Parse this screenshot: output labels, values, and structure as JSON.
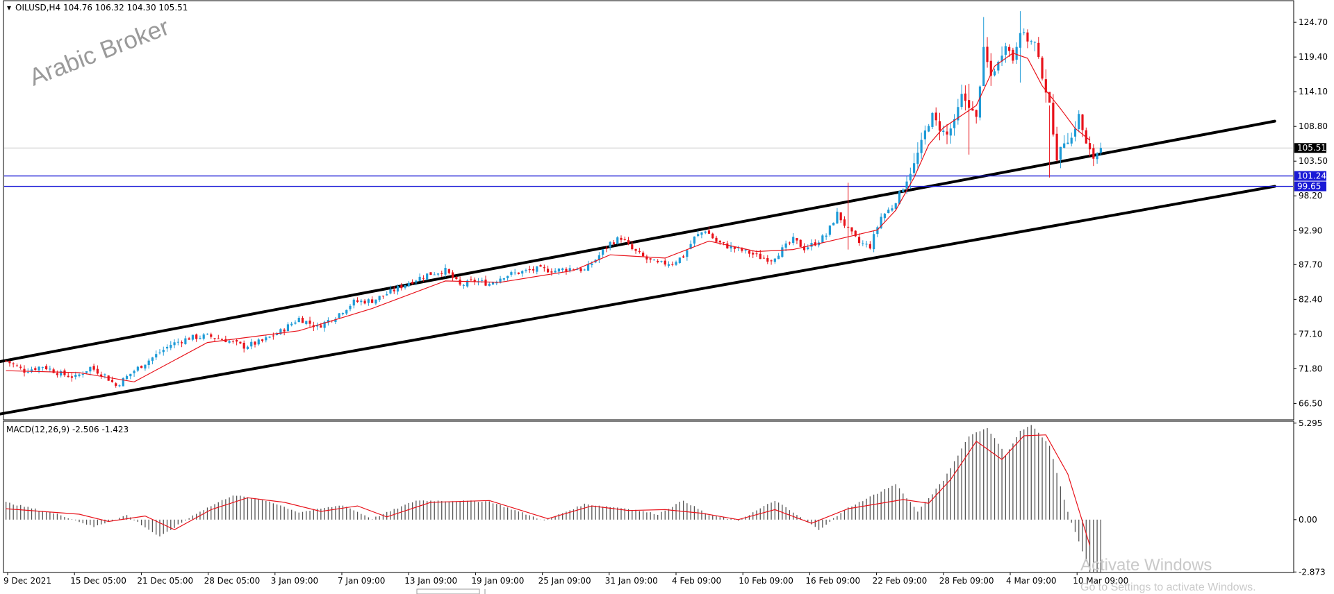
{
  "header": {
    "symbol_info": "OILUSD,H4  104.76 106.32 104.30 105.51",
    "macd_info": "MACD(12,26,9) -2.506 -1.423"
  },
  "watermark": "Arabic Broker",
  "os_overlay": {
    "activate_title": "Activate Windows",
    "activate_sub": "Go to Settings to activate Windows."
  },
  "colors": {
    "bull_candle": "#1e9bd7",
    "bear_candle": "#e8121a",
    "moving_average": "#e8121a",
    "channel": "#000000",
    "support_lines": "#1a1ad6",
    "current_price_line": "#c8c8c8",
    "badge_blue": "#1a1ad6",
    "badge_black": "#000000",
    "histogram": "#555555",
    "signal_line": "#e8121a"
  },
  "chart_data": [
    {
      "type": "candlestick",
      "symbol": "OILUSD",
      "timeframe": "H4",
      "last_bar": {
        "open": 104.76,
        "high": 106.32,
        "low": 104.3,
        "close": 105.51
      },
      "ylim": [
        64.0,
        128.0
      ],
      "y_ticks": [
        "124.70",
        "119.40",
        "114.10",
        "108.80",
        "103.50",
        "98.20",
        "92.90",
        "87.70",
        "82.40",
        "77.10",
        "71.80",
        "66.50"
      ],
      "x_ticks": [
        "9 Dec 2021",
        "15 Dec 05:00",
        "21 Dec 05:00",
        "28 Dec 05:00",
        "3 Jan 09:00",
        "7 Jan 09:00",
        "13 Jan 09:00",
        "19 Jan 09:00",
        "25 Jan 09:00",
        "31 Jan 09:00",
        "4 Feb 09:00",
        "10 Feb 09:00",
        "16 Feb 09:00",
        "22 Feb 09:00",
        "28 Feb 09:00",
        "4 Mar 09:00",
        "10 Mar 09:00"
      ],
      "close_path": [
        [
          0,
          73.0
        ],
        [
          5,
          71.5
        ],
        [
          10,
          72.2
        ],
        [
          15,
          71.0
        ],
        [
          19,
          70.5
        ],
        [
          23,
          72.0
        ],
        [
          27,
          70.8
        ],
        [
          30,
          69.2
        ],
        [
          35,
          71.5
        ],
        [
          40,
          73.5
        ],
        [
          45,
          75.5
        ],
        [
          50,
          76.5
        ],
        [
          55,
          76.8
        ],
        [
          60,
          76.2
        ],
        [
          65,
          75.2
        ],
        [
          70,
          76.0
        ],
        [
          75,
          77.5
        ],
        [
          80,
          79.5
        ],
        [
          85,
          78.2
        ],
        [
          90,
          79.8
        ],
        [
          95,
          82.0
        ],
        [
          100,
          82.2
        ],
        [
          105,
          83.5
        ],
        [
          110,
          85.0
        ],
        [
          115,
          86.2
        ],
        [
          120,
          86.8
        ],
        [
          124,
          84.5
        ],
        [
          128,
          85.2
        ],
        [
          132,
          84.8
        ],
        [
          136,
          86.0
        ],
        [
          140,
          86.5
        ],
        [
          145,
          87.0
        ],
        [
          150,
          86.8
        ],
        [
          155,
          87.2
        ],
        [
          158,
          86.8
        ],
        [
          161,
          88.5
        ],
        [
          165,
          91.0
        ],
        [
          168,
          91.8
        ],
        [
          171,
          90.0
        ],
        [
          175,
          88.5
        ],
        [
          178,
          87.8
        ],
        [
          182,
          88.0
        ],
        [
          185,
          89.0
        ],
        [
          188,
          91.8
        ],
        [
          191,
          93.0
        ],
        [
          194,
          91.2
        ],
        [
          197,
          90.5
        ],
        [
          200,
          90.0
        ],
        [
          203,
          89.5
        ],
        [
          206,
          88.8
        ],
        [
          209,
          88.5
        ],
        [
          212,
          90.0
        ],
        [
          215,
          91.5
        ],
        [
          218,
          90.2
        ],
        [
          221,
          91.0
        ],
        [
          224,
          92.2
        ],
        [
          227,
          95.5
        ],
        [
          230,
          93.0
        ],
        [
          233,
          91.0
        ],
        [
          236,
          90.5
        ],
        [
          239,
          95.0
        ],
        [
          242,
          96.5
        ],
        [
          245,
          99.5
        ],
        [
          248,
          103.0
        ],
        [
          251,
          108.0
        ],
        [
          253,
          110.5
        ],
        [
          255,
          108.5
        ],
        [
          257,
          107.5
        ],
        [
          259,
          109.5
        ],
        [
          261,
          113.5
        ],
        [
          263,
          112.0
        ],
        [
          265,
          110.0
        ],
        [
          267,
          120.5
        ],
        [
          269,
          116.5
        ],
        [
          271,
          118.5
        ],
        [
          273,
          121.5
        ],
        [
          275,
          119.0
        ],
        [
          277,
          123.5
        ],
        [
          279,
          122.0
        ],
        [
          281,
          121.5
        ],
        [
          283,
          116.5
        ],
        [
          285,
          112.0
        ],
        [
          287,
          104.0
        ],
        [
          289,
          106.5
        ],
        [
          291,
          107.0
        ],
        [
          293,
          110.5
        ],
        [
          295,
          106.0
        ],
        [
          297,
          104.0
        ],
        [
          299,
          105.51
        ]
      ],
      "spikes": [
        {
          "bar": 230,
          "high": 100.2,
          "low": 90.0
        },
        {
          "bar": 263,
          "high": 115.3,
          "low": 104.5
        },
        {
          "bar": 267,
          "high": 125.5,
          "low": 115.0
        },
        {
          "bar": 277,
          "high": 126.4,
          "low": 115.5
        },
        {
          "bar": 285,
          "high": 112.0,
          "low": 101.0
        }
      ],
      "ma_path": [
        [
          0,
          71.5
        ],
        [
          20,
          71.2
        ],
        [
          35,
          69.8
        ],
        [
          55,
          75.8
        ],
        [
          80,
          77.6
        ],
        [
          100,
          81.0
        ],
        [
          120,
          85.2
        ],
        [
          135,
          85.0
        ],
        [
          155,
          86.8
        ],
        [
          165,
          89.2
        ],
        [
          180,
          88.7
        ],
        [
          192,
          91.3
        ],
        [
          205,
          89.7
        ],
        [
          215,
          90.0
        ],
        [
          225,
          91.3
        ],
        [
          238,
          93.0
        ],
        [
          243,
          96.0
        ],
        [
          248,
          101.0
        ],
        [
          252,
          106.0
        ],
        [
          256,
          108.6
        ],
        [
          261,
          110.5
        ],
        [
          265,
          112.0
        ],
        [
          270,
          118.0
        ],
        [
          275,
          120.0
        ],
        [
          279,
          119.2
        ],
        [
          283,
          115.0
        ],
        [
          288,
          111.5
        ],
        [
          292,
          108.5
        ],
        [
          296,
          106.7
        ]
      ],
      "channel_lines": [
        {
          "from": {
            "bar": -2,
            "price": 72.8
          },
          "to": {
            "bar": 347,
            "price": 109.6
          }
        },
        {
          "from": {
            "bar": -2,
            "price": 64.8
          },
          "to": {
            "bar": 347,
            "price": 99.65
          }
        }
      ],
      "horizontal_levels": [
        {
          "price": 101.24,
          "label": "101.24"
        },
        {
          "price": 99.65,
          "label": "99.65"
        }
      ],
      "current_price": {
        "price": 105.51,
        "label": "105.51"
      }
    },
    {
      "type": "macd",
      "params": "MACD(12,26,9)",
      "values": {
        "macd": -2.506,
        "signal": -1.423
      },
      "ylim": [
        -2.9,
        5.4
      ],
      "y_ticks": [
        "5.295",
        "0.00",
        "-2.873"
      ],
      "histogram_path": [
        [
          0,
          0.95
        ],
        [
          15,
          0.25
        ],
        [
          24,
          -0.4
        ],
        [
          33,
          0.25
        ],
        [
          42,
          -0.95
        ],
        [
          52,
          0.35
        ],
        [
          62,
          1.35
        ],
        [
          72,
          1.0
        ],
        [
          80,
          0.4
        ],
        [
          92,
          0.8
        ],
        [
          100,
          0.05
        ],
        [
          112,
          1.05
        ],
        [
          132,
          1.0
        ],
        [
          147,
          -0.05
        ],
        [
          158,
          0.85
        ],
        [
          170,
          0.6
        ],
        [
          178,
          0.3
        ],
        [
          185,
          1.05
        ],
        [
          192,
          0.25
        ],
        [
          200,
          -0.05
        ],
        [
          210,
          1.05
        ],
        [
          222,
          -0.55
        ],
        [
          230,
          0.65
        ],
        [
          243,
          1.95
        ],
        [
          249,
          0.45
        ],
        [
          256,
          2.15
        ],
        [
          263,
          4.6
        ],
        [
          268,
          5.05
        ],
        [
          273,
          3.55
        ],
        [
          277,
          4.85
        ],
        [
          280,
          5.2
        ],
        [
          285,
          4.05
        ],
        [
          290,
          0.4
        ],
        [
          293,
          -1.2
        ],
        [
          296,
          -2.87
        ]
      ],
      "signal_path": [
        [
          0,
          0.6
        ],
        [
          20,
          0.3
        ],
        [
          28,
          -0.1
        ],
        [
          38,
          0.2
        ],
        [
          46,
          -0.55
        ],
        [
          56,
          0.55
        ],
        [
          66,
          1.2
        ],
        [
          76,
          0.95
        ],
        [
          86,
          0.45
        ],
        [
          96,
          0.75
        ],
        [
          104,
          0.15
        ],
        [
          116,
          0.95
        ],
        [
          132,
          1.05
        ],
        [
          148,
          0.05
        ],
        [
          160,
          0.75
        ],
        [
          170,
          0.5
        ],
        [
          180,
          0.55
        ],
        [
          190,
          0.35
        ],
        [
          200,
          0.0
        ],
        [
          210,
          0.55
        ],
        [
          220,
          -0.2
        ],
        [
          230,
          0.6
        ],
        [
          245,
          1.1
        ],
        [
          252,
          0.9
        ],
        [
          258,
          2.2
        ],
        [
          265,
          4.3
        ],
        [
          272,
          3.3
        ],
        [
          278,
          4.6
        ],
        [
          284,
          4.65
        ],
        [
          290,
          2.5
        ],
        [
          296,
          -1.423
        ]
      ]
    }
  ]
}
